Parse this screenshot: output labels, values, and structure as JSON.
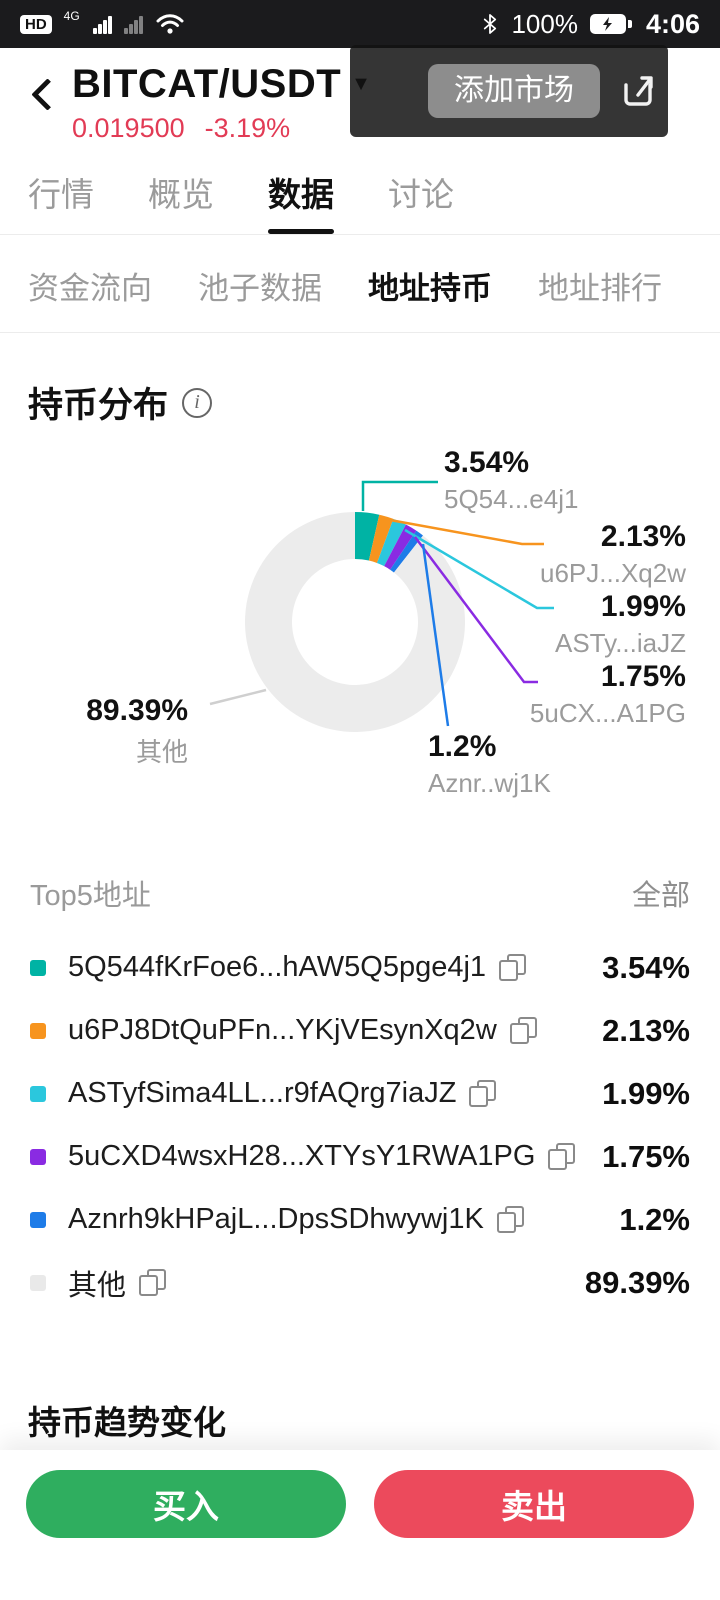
{
  "status_bar": {
    "time": "4:06",
    "battery": "100%",
    "network": "4G",
    "hd": "HD"
  },
  "header": {
    "pair": "BITCAT/USDT",
    "price": "0.019500",
    "change": "-3.19%",
    "tooltip_button": "添加市场",
    "price_color": "#e23b55"
  },
  "tabs": {
    "items": [
      "行情",
      "概览",
      "数据",
      "讨论"
    ],
    "active": "数据"
  },
  "subtabs": {
    "items": [
      "资金流向",
      "池子数据",
      "地址持币",
      "地址排行"
    ],
    "active": "地址持币"
  },
  "distribution": {
    "title": "持币分布"
  },
  "chart_data": {
    "type": "pie",
    "title": "持币分布",
    "legend_position": "callout-labels",
    "slices": [
      {
        "label": "5Q54...e4j1",
        "pct": "3.54%",
        "value": 3.54,
        "color": "#00b3a4"
      },
      {
        "label": "u6PJ...Xq2w",
        "pct": "2.13%",
        "value": 2.13,
        "color": "#f7941e"
      },
      {
        "label": "ASTy...iaJZ",
        "pct": "1.99%",
        "value": 1.99,
        "color": "#2bc7dd"
      },
      {
        "label": "5uCX...A1PG",
        "pct": "1.75%",
        "value": 1.75,
        "color": "#8a2be2"
      },
      {
        "label": "Aznr..wj1K",
        "pct": "1.2%",
        "value": 1.2,
        "color": "#1e7ce8"
      },
      {
        "label": "其他",
        "pct": "89.39%",
        "value": 89.39,
        "color": "#ececec"
      }
    ]
  },
  "holdings": {
    "header_left": "Top5地址",
    "header_right": "全部",
    "rows": [
      {
        "address": "5Q544fKrFoe6...hAW5Q5pge4j1",
        "pct": "3.54%",
        "color": "#00b3a4"
      },
      {
        "address": "u6PJ8DtQuPFn...YKjVEsynXq2w",
        "pct": "2.13%",
        "color": "#f7941e"
      },
      {
        "address": "ASTyfSima4LL...r9fAQrg7iaJZ",
        "pct": "1.99%",
        "color": "#2bc7dd"
      },
      {
        "address": "5uCXD4wsxH28...XTYsY1RWA1PG",
        "pct": "1.75%",
        "color": "#8a2be2"
      },
      {
        "address": "Aznrh9kHPajL...DpsSDhwywj1K",
        "pct": "1.2%",
        "color": "#1e7ce8"
      },
      {
        "address": "其他",
        "pct": "89.39%",
        "color": "#e9e9e9"
      }
    ]
  },
  "trend": {
    "title": "持币趋势变化"
  },
  "footer": {
    "buy": "买入",
    "sell": "卖出",
    "buy_color": "#2fae5f",
    "sell_color": "#ec4a5c"
  },
  "icons": {
    "dropdown": "▼",
    "info": "i"
  }
}
